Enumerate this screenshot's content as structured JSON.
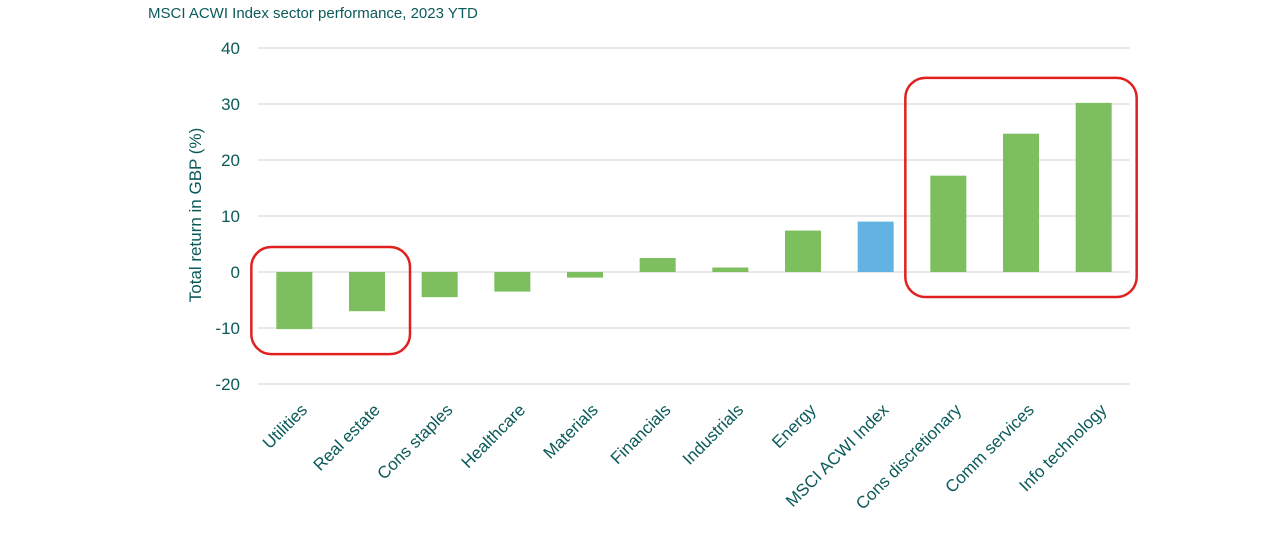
{
  "chart_data": {
    "type": "bar",
    "title": "MSCI ACWI Index sector performance, 2023 YTD",
    "xlabel": "",
    "ylabel": "Total return in GBP (%)",
    "ylim": [
      -20,
      40
    ],
    "yticks": [
      -20,
      -10,
      0,
      10,
      20,
      30,
      40
    ],
    "grid": true,
    "categories": [
      "Utilities",
      "Real estate",
      "Cons staples",
      "Healthcare",
      "Materials",
      "Financials",
      "Industrials",
      "Energy",
      "MSCI ACWI Index",
      "Cons discretionary",
      "Comm services",
      "Info technology"
    ],
    "values": [
      -10.2,
      -7.0,
      -4.5,
      -3.5,
      -1.0,
      2.5,
      0.8,
      7.4,
      9.0,
      17.2,
      24.7,
      30.2
    ],
    "bar_colors": [
      "#7dbe5f",
      "#7dbe5f",
      "#7dbe5f",
      "#7dbe5f",
      "#7dbe5f",
      "#7dbe5f",
      "#7dbe5f",
      "#7dbe5f",
      "#63b3e2",
      "#7dbe5f",
      "#7dbe5f",
      "#7dbe5f"
    ],
    "highlight_color": "#e02020",
    "highlights": [
      {
        "from": "Utilities",
        "to": "Real estate"
      },
      {
        "from": "Cons discretionary",
        "to": "Info technology"
      }
    ]
  }
}
